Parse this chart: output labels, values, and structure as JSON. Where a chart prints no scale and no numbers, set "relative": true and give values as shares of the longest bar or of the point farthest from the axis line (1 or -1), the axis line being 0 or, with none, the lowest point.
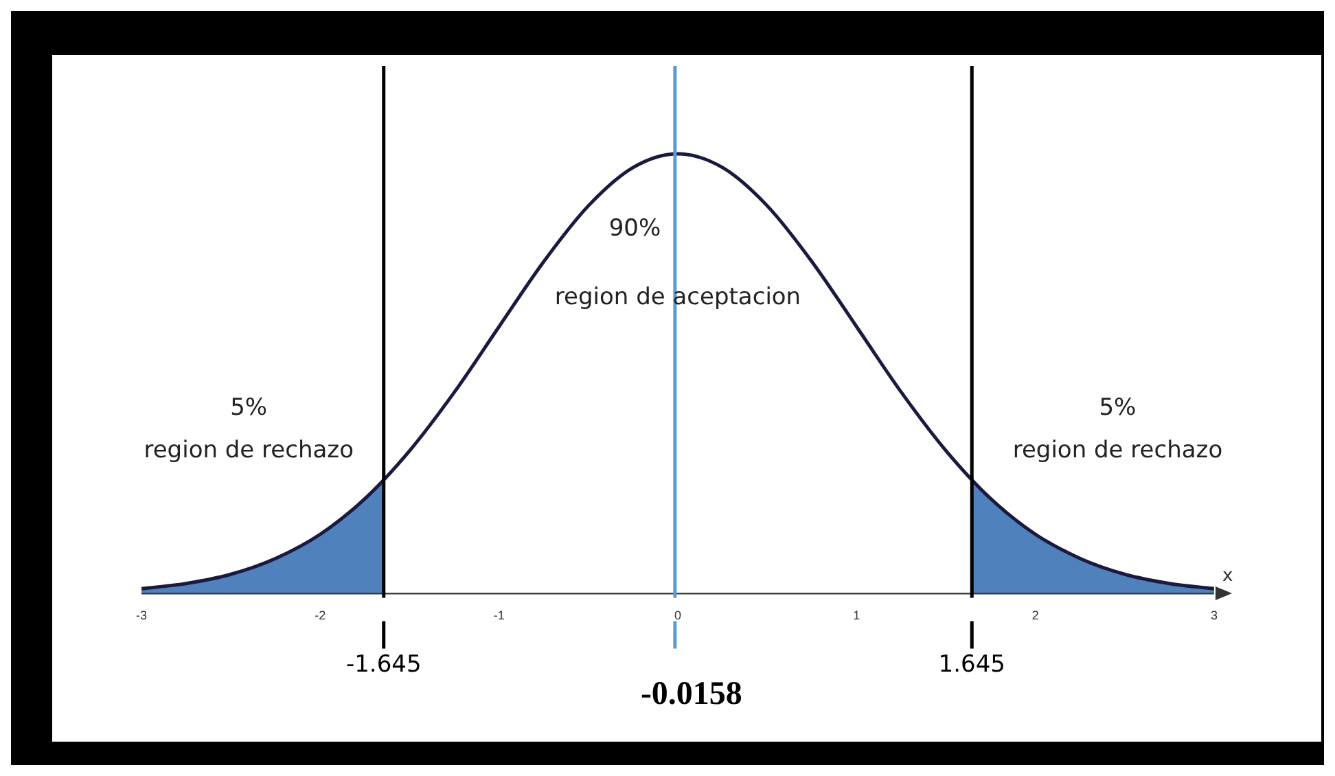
{
  "chart_data": {
    "type": "line",
    "relative": true,
    "xlabel": "x",
    "xlim": [
      -3,
      3
    ],
    "xticks": [
      {
        "value": -3,
        "label": "-3"
      },
      -2,
      -1,
      0,
      1,
      2,
      3
    ],
    "grid": false,
    "legend": false,
    "marker": "none",
    "line_style": "solid",
    "series": [
      {
        "type": "line",
        "color": "#1a1a40",
        "x": [
          -3,
          -2.75,
          -2.5,
          -2.25,
          -2,
          -1.75,
          -1.5,
          -1.25,
          -1,
          -0.75,
          -0.5,
          -0.25,
          0,
          0.25,
          0.5,
          0.75,
          1,
          1.25,
          1.5,
          1.75,
          2,
          2.25,
          2.5,
          2.75,
          3
        ],
        "values": [
          0.011,
          0.023,
          0.044,
          0.08,
          0.135,
          0.216,
          0.325,
          0.458,
          0.607,
          0.755,
          0.882,
          0.969,
          1,
          0.969,
          0.882,
          0.755,
          0.607,
          0.458,
          0.325,
          0.216,
          0.135,
          0.08,
          0.044,
          0.023,
          0.011
        ]
      },
      {
        "type": "area",
        "color": "#4f81bd",
        "x": [
          -3,
          -2.75,
          -2.5,
          -2.25,
          -2,
          -1.75,
          -1.645
        ],
        "values": [
          0.011,
          0.023,
          0.044,
          0.08,
          0.135,
          0.216,
          0.259
        ]
      },
      {
        "type": "area",
        "color": "#4f81bd",
        "x": [
          1.645,
          1.75,
          2,
          2.25,
          2.5,
          2.75,
          3
        ],
        "values": [
          0.259,
          0.216,
          0.135,
          0.08,
          0.044,
          0.023,
          0.011
        ]
      }
    ],
    "ref_lines": [
      {
        "axis": "x",
        "value": -1.645,
        "label": "-1.645",
        "color": "#000000"
      },
      {
        "axis": "x",
        "value": 1.645,
        "label": "1.645",
        "color": "#000000"
      },
      {
        "axis": "x",
        "value": -0.0158,
        "label": "-0.0158",
        "color": "#5b9bd5"
      }
    ],
    "annotations": [
      "90%",
      "region de aceptacion",
      "5%",
      "region de rechazo",
      "5%",
      "region de rechazo"
    ]
  }
}
